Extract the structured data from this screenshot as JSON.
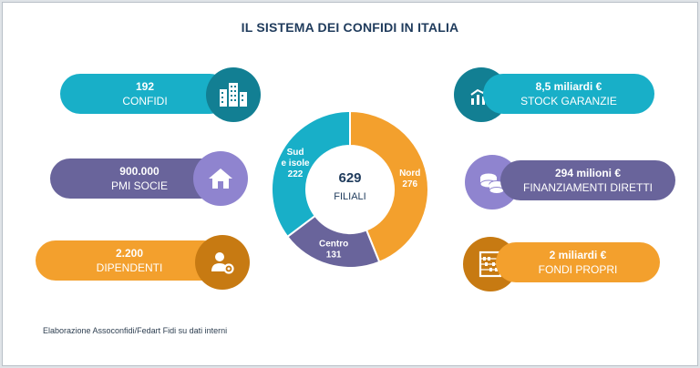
{
  "title": "IL SISTEMA DEI CONFIDI IN ITALIA",
  "colors": {
    "teal": "#18afc8",
    "teal_dark": "#127f93",
    "purple": "#69649b",
    "purple_light": "#8f84cf",
    "orange": "#f3a02d",
    "orange_dark": "#c77a12",
    "navy": "#1f3b5c"
  },
  "left_stats": [
    {
      "value": "192",
      "label": "CONFIDI",
      "icon": "buildings-icon"
    },
    {
      "value": "900.000",
      "label": "PMI SOCIE",
      "icon": "house-icon"
    },
    {
      "value": "2.200",
      "label": "DIPENDENTI",
      "icon": "employee-gear-icon"
    }
  ],
  "right_stats": [
    {
      "value": "8,5 miliardi €",
      "label": "STOCK GARANZIE",
      "icon": "growth-chart-icon"
    },
    {
      "value": "294 milioni €",
      "label": "FINANZIAMENTI DIRETTI",
      "icon": "coins-icon"
    },
    {
      "value": "2 miliardi €",
      "label": "FONDI PROPRI",
      "icon": "abacus-icon"
    }
  ],
  "chart_data": {
    "type": "pie",
    "center_value": "629",
    "center_label": "FILIALI",
    "slices": [
      {
        "name": "Nord",
        "value": 276,
        "color": "#f3a02d"
      },
      {
        "name": "Centro",
        "value": 131,
        "color": "#69649b"
      },
      {
        "name": "Sud e isole",
        "name_lines": [
          "Sud",
          "e isole"
        ],
        "value": 222,
        "color": "#18afc8"
      }
    ]
  },
  "footer": "Elaborazione Assoconfidi/Fedart Fidi su dati interni"
}
